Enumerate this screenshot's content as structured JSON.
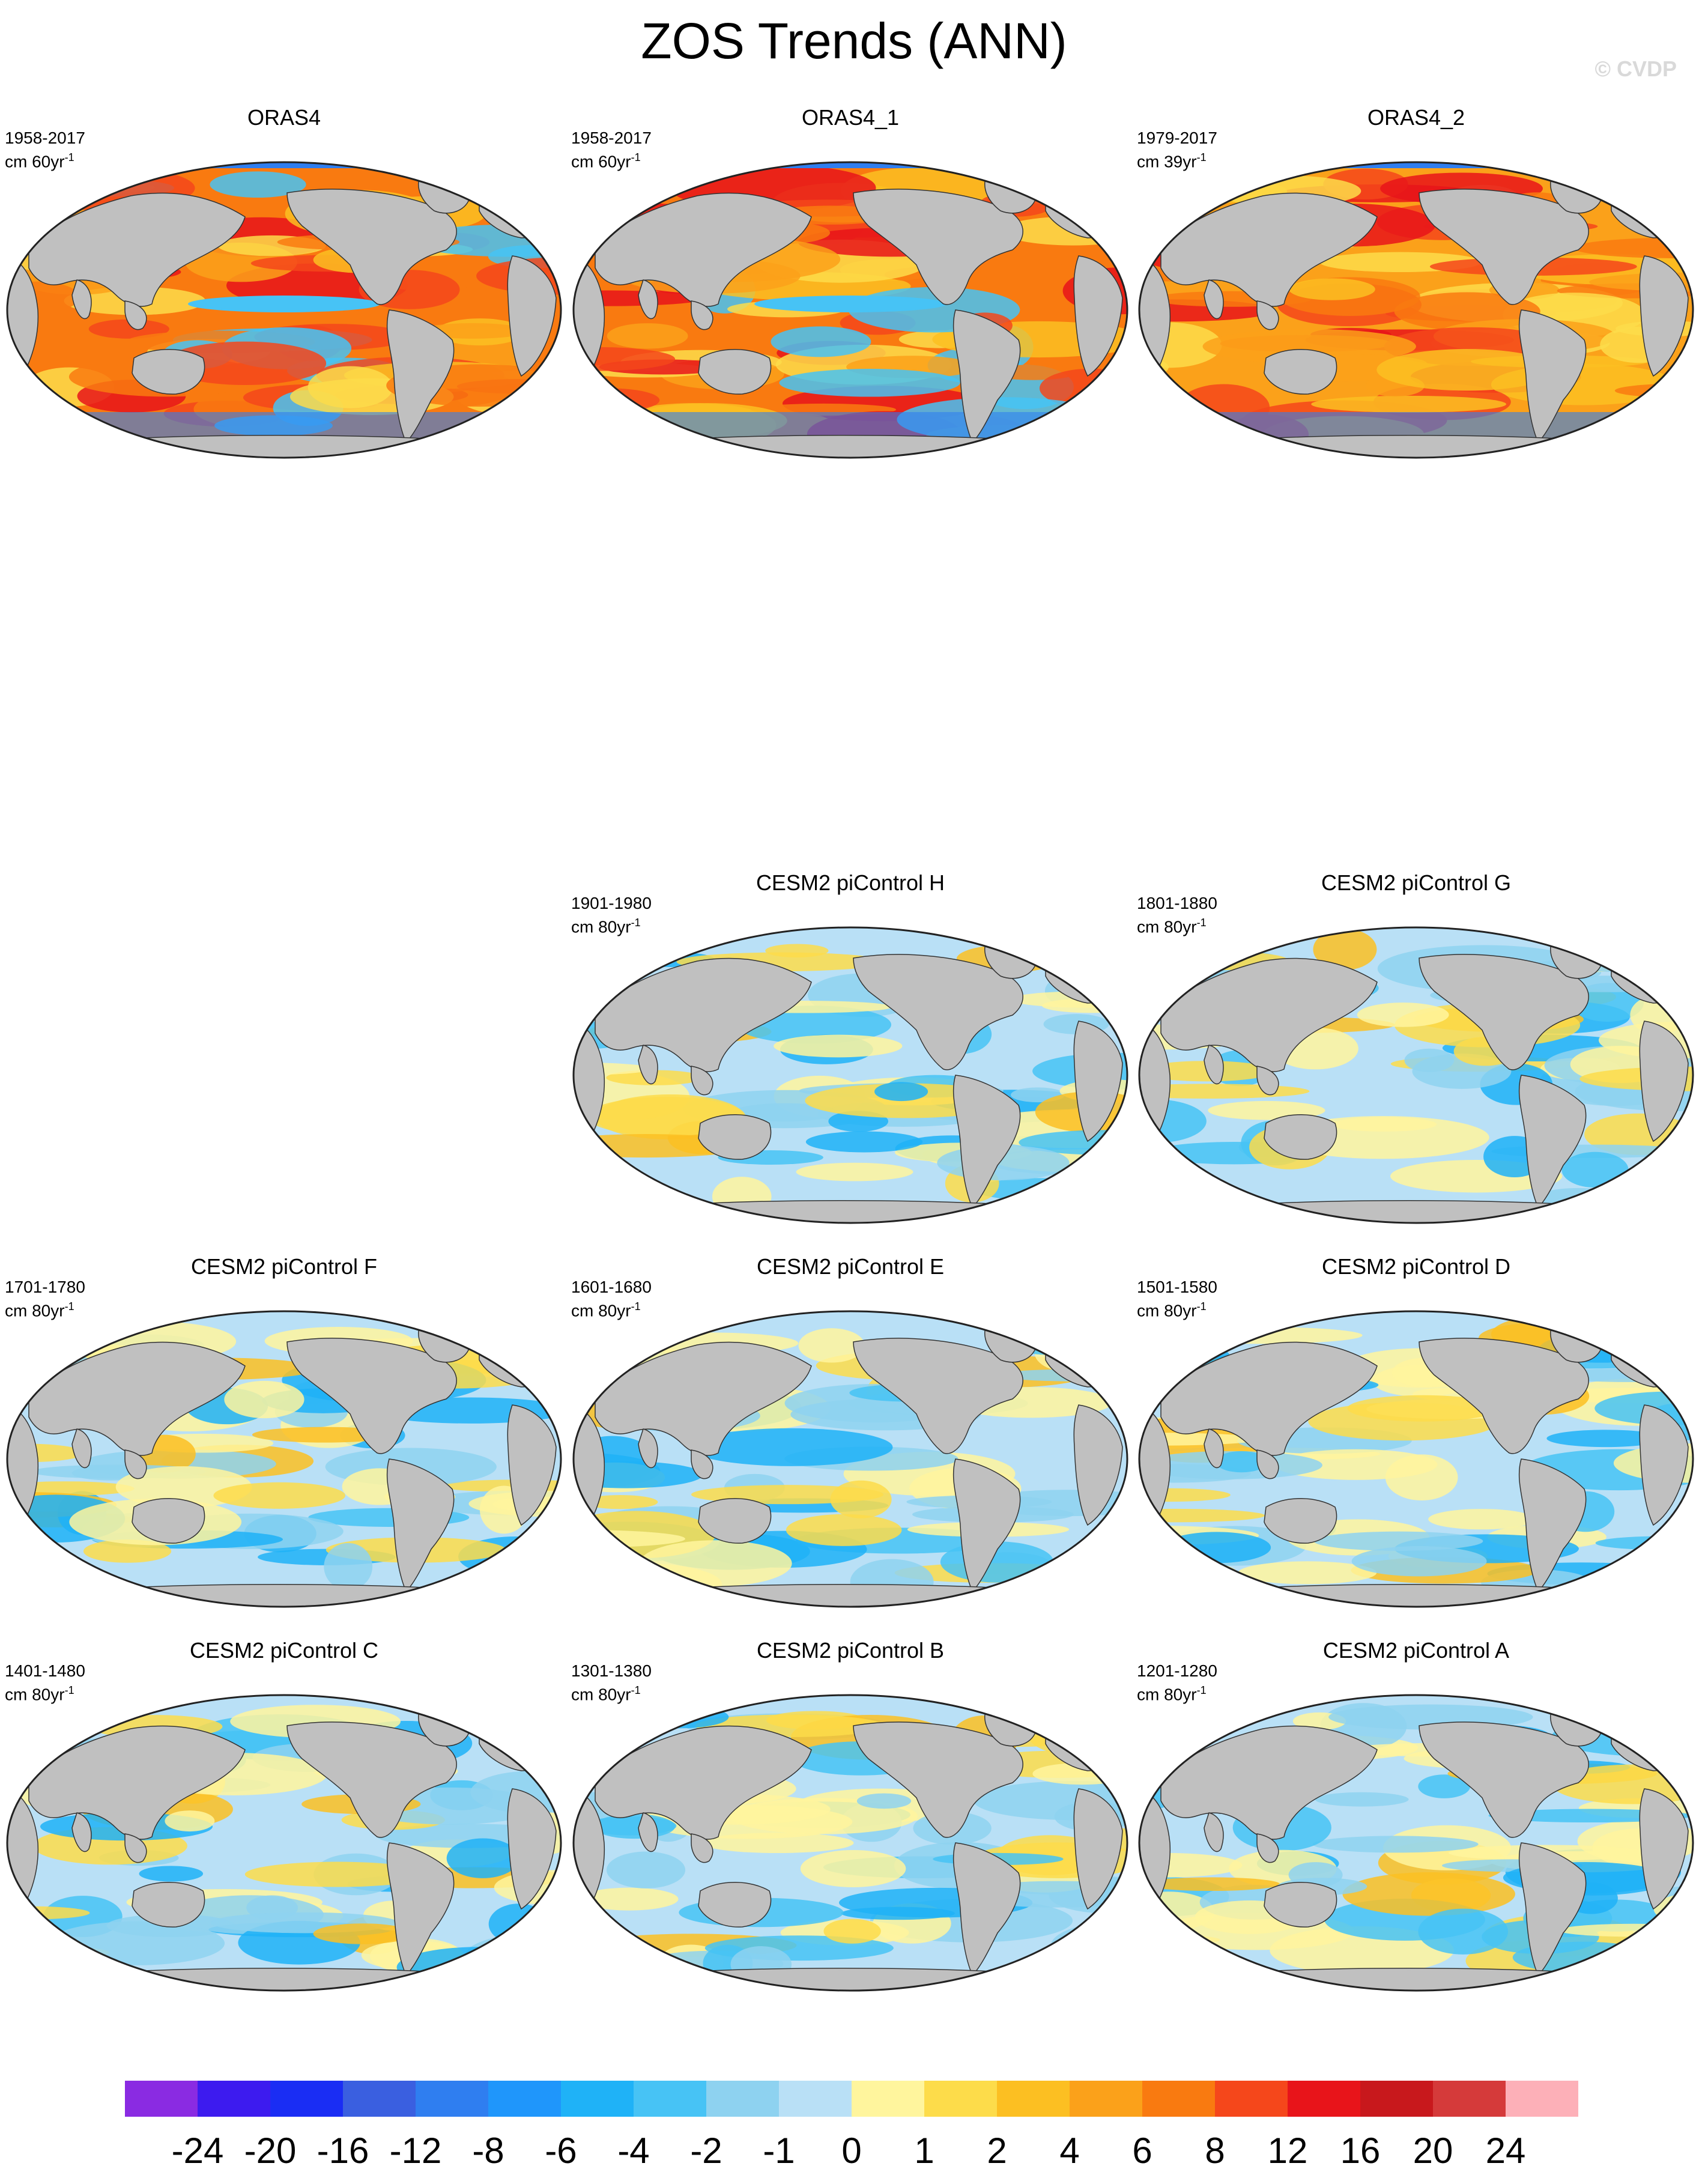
{
  "figure": {
    "title": "ZOS Trends (ANN)",
    "copyright": "© CVDP"
  },
  "panels": [
    {
      "title": "ORAS4",
      "period": "1958-2017",
      "units_base": "cm 60yr",
      "units_exp": "-1",
      "style": "warm"
    },
    {
      "title": "ORAS4_1",
      "period": "1958-2017",
      "units_base": "cm 60yr",
      "units_exp": "-1",
      "style": "warm"
    },
    {
      "title": "ORAS4_2",
      "period": "1979-2017",
      "units_base": "cm 39yr",
      "units_exp": "-1",
      "style": "warm2"
    },
    {
      "title": "CESM2 piControl H",
      "period": "1901-1980",
      "units_base": "cm 80yr",
      "units_exp": "-1",
      "style": "mixed"
    },
    {
      "title": "CESM2 piControl G",
      "period": "1801-1880",
      "units_base": "cm 80yr",
      "units_exp": "-1",
      "style": "mixed"
    },
    {
      "title": "CESM2 piControl F",
      "period": "1701-1780",
      "units_base": "cm 80yr",
      "units_exp": "-1",
      "style": "mixed"
    },
    {
      "title": "CESM2 piControl E",
      "period": "1601-1680",
      "units_base": "cm 80yr",
      "units_exp": "-1",
      "style": "mixed"
    },
    {
      "title": "CESM2 piControl D",
      "period": "1501-1580",
      "units_base": "cm 80yr",
      "units_exp": "-1",
      "style": "mixed"
    },
    {
      "title": "CESM2 piControl C",
      "period": "1401-1480",
      "units_base": "cm 80yr",
      "units_exp": "-1",
      "style": "mixed"
    },
    {
      "title": "CESM2 piControl B",
      "period": "1301-1380",
      "units_base": "cm 80yr",
      "units_exp": "-1",
      "style": "mixed"
    },
    {
      "title": "CESM2 piControl A",
      "period": "1201-1280",
      "units_base": "cm 80yr",
      "units_exp": "-1",
      "style": "mixed"
    }
  ],
  "colorbar": {
    "labels": [
      "-24",
      "-20",
      "-16",
      "-12",
      "-8",
      "-6",
      "-4",
      "-2",
      "-1",
      "0",
      "1",
      "2",
      "4",
      "6",
      "8",
      "12",
      "16",
      "20",
      "24"
    ],
    "colors": [
      "#8a2be2",
      "#3d1bef",
      "#1a2df4",
      "#3a5fe0",
      "#2f7ef0",
      "#1f96fb",
      "#1fb2f7",
      "#47c3f5",
      "#8ed2f0",
      "#b9e0f6",
      "#fff59d",
      "#fddc4a",
      "#fcbf22",
      "#fba11a",
      "#f97a10",
      "#f5471b",
      "#e8141a",
      "#c8181c",
      "#d53a3a",
      "#fdb0b8"
    ]
  }
}
